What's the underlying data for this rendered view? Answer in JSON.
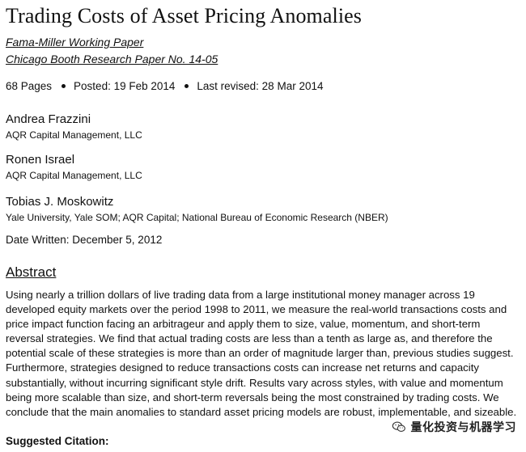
{
  "paper": {
    "title": "Trading Costs of Asset Pricing Anomalies",
    "series": [
      "Fama-Miller Working Paper",
      "Chicago Booth Research Paper No. 14-05"
    ],
    "meta": {
      "pages": "68 Pages",
      "posted": "Posted: 19 Feb 2014",
      "revised": "Last revised: 28 Mar 2014"
    },
    "authors": [
      {
        "name": "Andrea Frazzini",
        "affiliation": "AQR Capital Management, LLC"
      },
      {
        "name": "Ronen Israel",
        "affiliation": "AQR Capital Management, LLC"
      },
      {
        "name": "Tobias J. Moskowitz",
        "affiliation": "Yale University, Yale SOM; AQR Capital; National Bureau of Economic Research (NBER)"
      }
    ],
    "date_written": "Date Written: December 5, 2012",
    "abstract_heading": "Abstract",
    "abstract_lines": [
      "Using nearly a trillion dollars of live trading data from a large institutional money manager across 19",
      "developed equity markets over the period 1998 to 2011, we measure the real-world transactions costs and",
      "price impact function facing an arbitrageur and apply them to size, value, momentum, and short-term",
      "reversal strategies. We find that actual trading costs are less than a tenth as large as, and therefore the",
      "potential scale of these strategies is more than an order of magnitude larger than, previous studies suggest.",
      "Furthermore, strategies designed to reduce transactions costs can increase net returns and capacity",
      "substantially, without incurring significant style drift. Results vary across styles, with value and momentum",
      "being more scalable than size, and short-term reversals being the most constrained by trading costs. We",
      "conclude that the main anomalies to standard asset pricing models are robust, implementable, and sizeable."
    ],
    "citation_label": "Suggested Citation:"
  },
  "watermark": {
    "icon": "wechat-icon",
    "text": "量化投资与机器学习"
  }
}
